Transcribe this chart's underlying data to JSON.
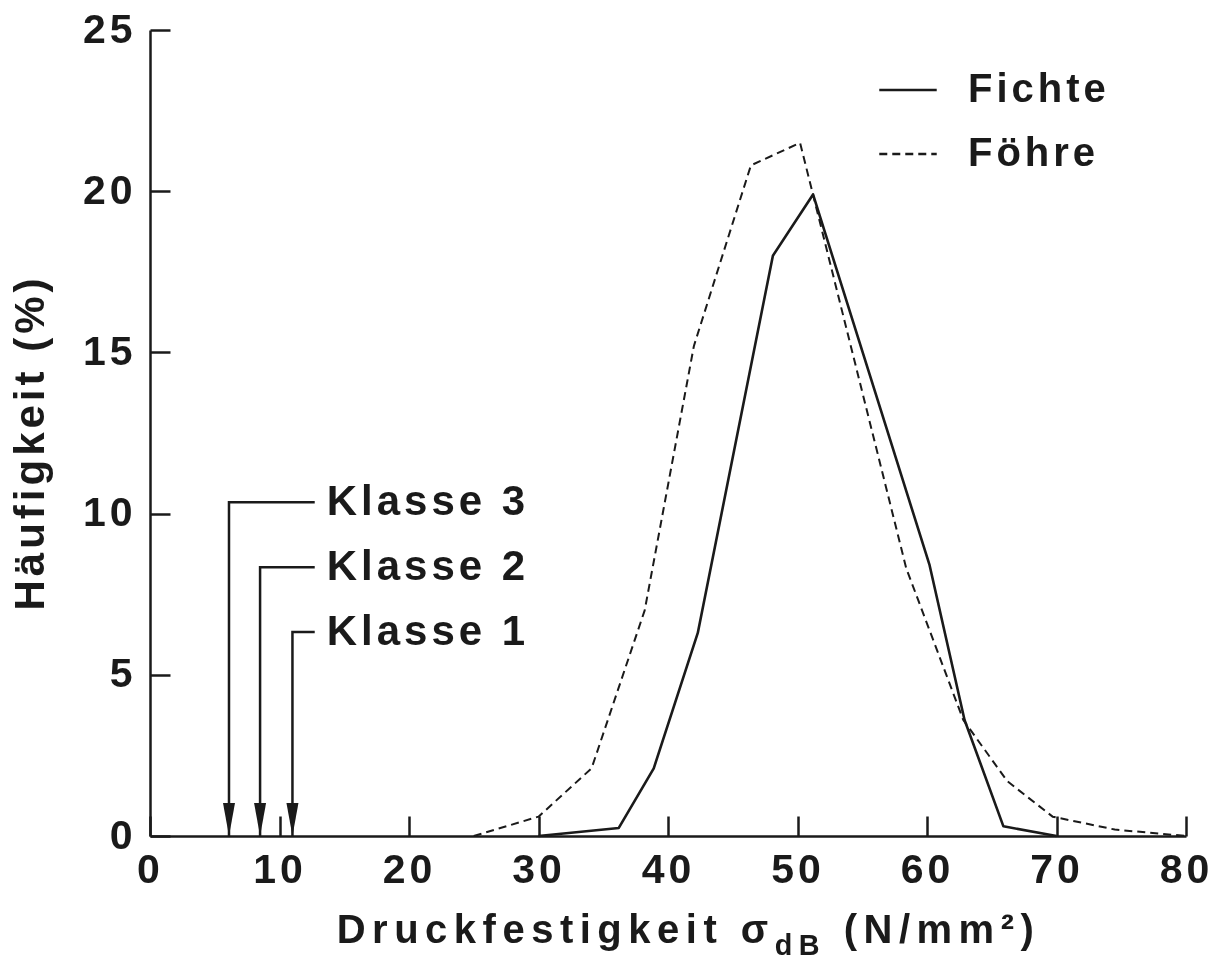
{
  "chart_data": {
    "type": "line",
    "xlabel": "Druckfestigkeit σ$_{dB}$ (N/mm²)",
    "ylabel": "Häufigkeit (%)",
    "xlim": [
      0,
      80
    ],
    "xticks": [
      0,
      10,
      20,
      30,
      40,
      50,
      60,
      70,
      80
    ],
    "ylim": [
      0,
      25
    ],
    "yticks": [
      0,
      5,
      10,
      15,
      20,
      25
    ],
    "legend": "top right",
    "series": [
      {
        "name": "Fichte",
        "color": "#1a1a1a",
        "line_style": "solid",
        "x": [
          30,
          36.2,
          38.9,
          42.3,
          48.1,
          51.2,
          60.2,
          62.9,
          65.9,
          70
        ],
        "values": [
          0,
          0.25,
          2.1,
          6.3,
          18.0,
          19.9,
          8.4,
          3.6,
          0.3,
          0
        ]
      },
      {
        "name": "Föhre",
        "color": "#1a1a1a",
        "line_style": "dashed",
        "x": [
          25,
          30,
          34.1,
          38.2,
          42.0,
          46.4,
          50.2,
          58.4,
          62.8,
          66.2,
          69.7,
          74.5,
          80
        ],
        "values": [
          0,
          0.6,
          2.1,
          7.0,
          15.2,
          20.8,
          21.5,
          8.3,
          3.6,
          1.7,
          0.6,
          0.2,
          0
        ]
      }
    ],
    "ref_lines": [
      {
        "axis": "x",
        "value": 6.1,
        "label": "Klasse 3"
      },
      {
        "axis": "x",
        "value": 8.5,
        "label": "Klasse 2"
      },
      {
        "axis": "x",
        "value": 11,
        "label": "Klasse 1"
      }
    ]
  }
}
